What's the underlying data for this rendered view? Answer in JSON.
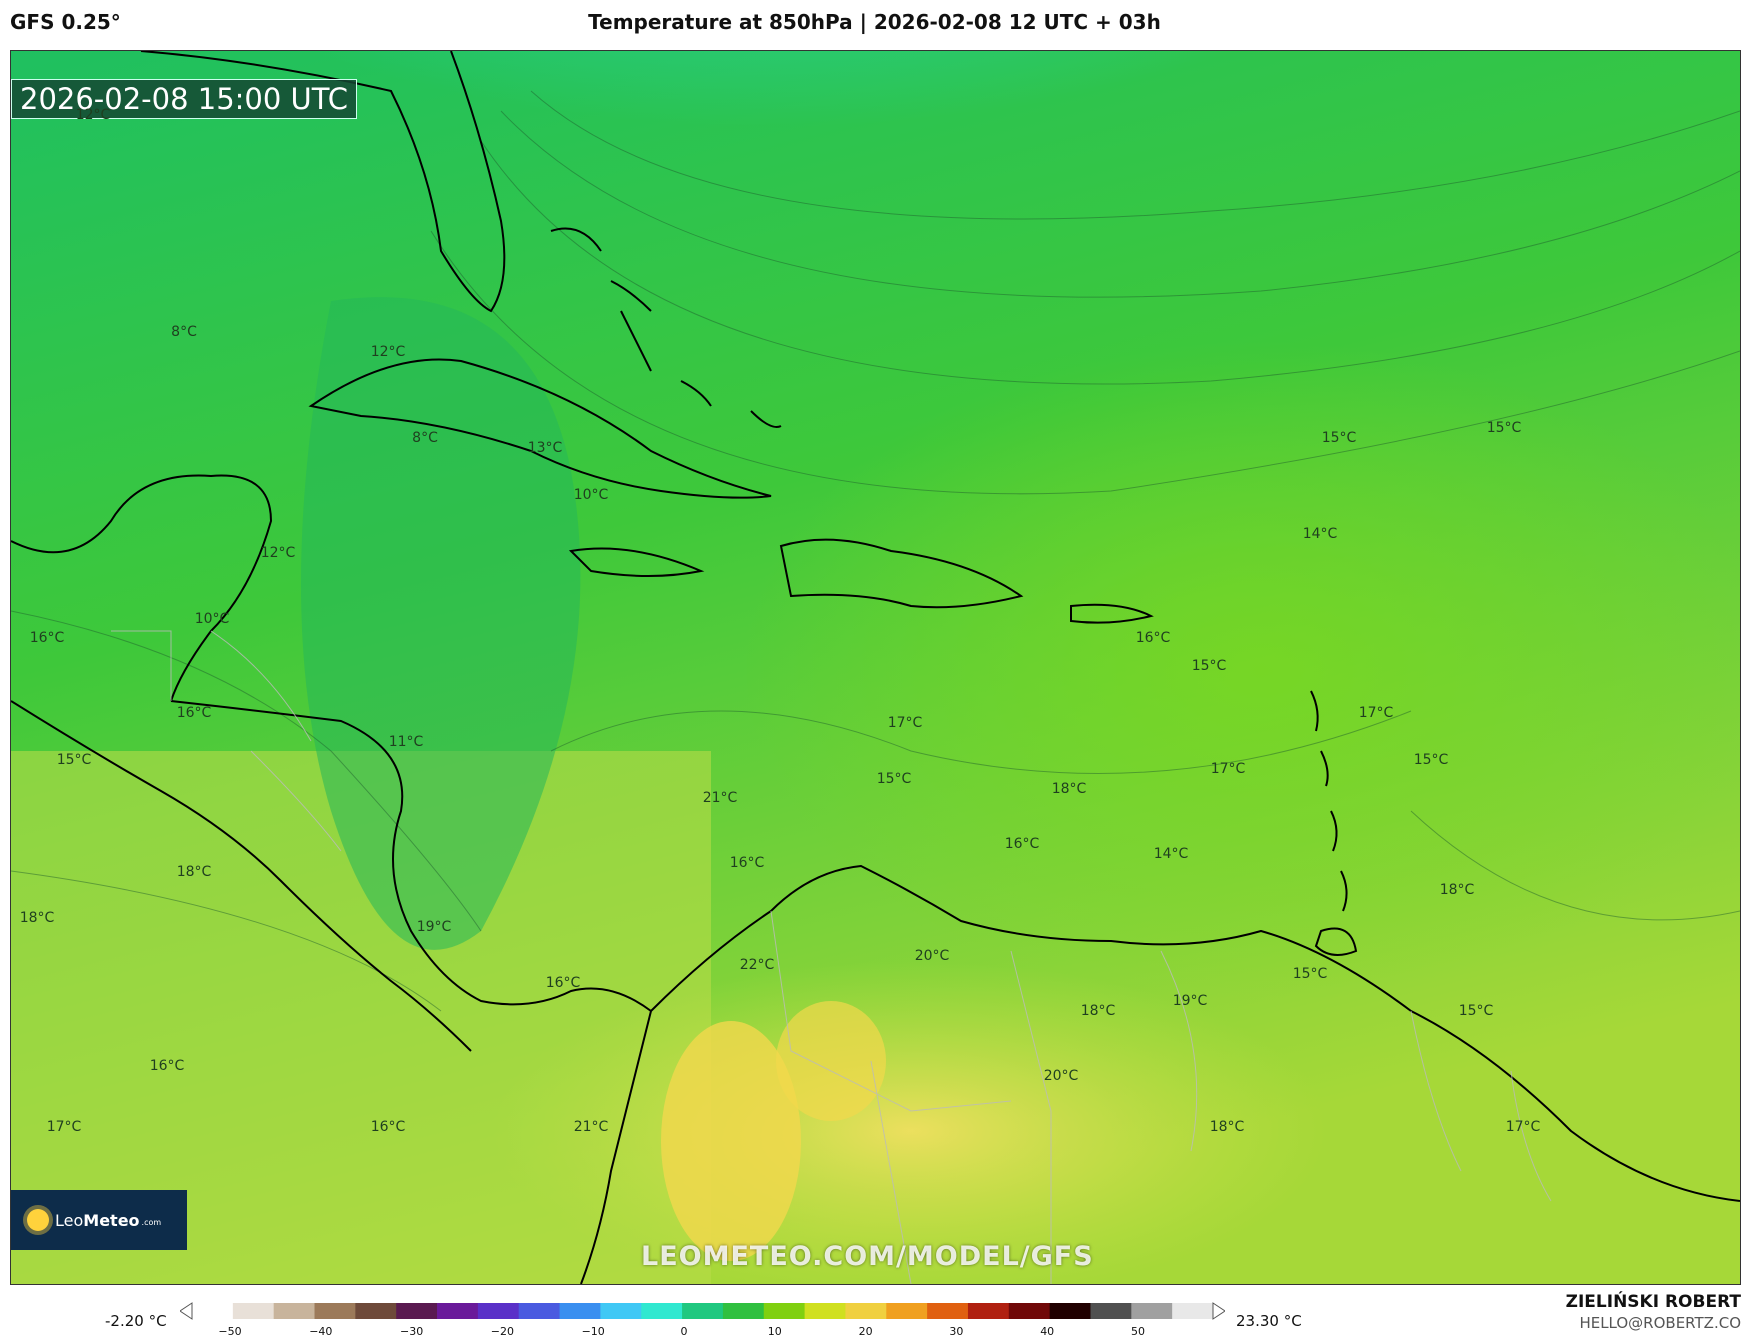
{
  "header": {
    "model": "GFS 0.25°",
    "title": "Temperature at 850hPa | 2026-02-08 12 UTC + 03h"
  },
  "map": {
    "valid_time": "2026-02-08 15:00 UTC",
    "watermark": "LEOMETEO.COM/MODEL/GFS",
    "labels": [
      {
        "text": "12°C"
      },
      {
        "text": "8°C"
      },
      {
        "text": "12°C"
      },
      {
        "text": "8°C"
      },
      {
        "text": "13°C"
      },
      {
        "text": "10°C"
      },
      {
        "text": "12°C"
      },
      {
        "text": "10°C"
      },
      {
        "text": "16°C"
      },
      {
        "text": "16°C"
      },
      {
        "text": "11°C"
      },
      {
        "text": "15°C"
      },
      {
        "text": "18°C"
      },
      {
        "text": "18°C"
      },
      {
        "text": "19°C"
      },
      {
        "text": "16°C"
      },
      {
        "text": "16°C"
      },
      {
        "text": "17°C"
      },
      {
        "text": "16°C"
      },
      {
        "text": "21°C"
      },
      {
        "text": "21°C"
      },
      {
        "text": "16°C"
      },
      {
        "text": "22°C"
      },
      {
        "text": "17°C"
      },
      {
        "text": "15°C"
      },
      {
        "text": "20°C"
      },
      {
        "text": "18°C"
      },
      {
        "text": "16°C"
      },
      {
        "text": "14°C"
      },
      {
        "text": "20°C"
      },
      {
        "text": "18°C"
      },
      {
        "text": "19°C"
      },
      {
        "text": "18°C"
      },
      {
        "text": "15°C"
      },
      {
        "text": "16°C"
      },
      {
        "text": "15°C"
      },
      {
        "text": "17°C"
      },
      {
        "text": "15°C"
      },
      {
        "text": "14°C"
      },
      {
        "text": "17°C"
      },
      {
        "text": "15°C"
      },
      {
        "text": "15°C"
      },
      {
        "text": "18°C"
      },
      {
        "text": "15°C"
      },
      {
        "text": "17°C"
      }
    ]
  },
  "logo": {
    "brand_a": "Leo",
    "brand_b": "Meteo",
    "domain": ".com"
  },
  "colorbar": {
    "min_label": "-2.20 °C",
    "max_label": "23.30 °C",
    "ticks": [
      "−50",
      "−40",
      "−30",
      "−20",
      "−10",
      "0",
      "10",
      "20",
      "30",
      "40",
      "50"
    ],
    "colors": [
      "#ffffff",
      "#e8e0d8",
      "#c8b49c",
      "#9c7a5a",
      "#6e4a3a",
      "#5a1a50",
      "#6a1a9a",
      "#5a30c8",
      "#4a5ae0",
      "#3a8ff0",
      "#40c8f5",
      "#30e8d0",
      "#20c880",
      "#30c040",
      "#80d010",
      "#d0e020",
      "#f0d040",
      "#f0a020",
      "#e06010",
      "#b02010",
      "#700808",
      "#200000",
      "#505050",
      "#a0a0a0",
      "#e8e8e8"
    ]
  },
  "footer": {
    "author": "ZIELIŃSKI ROBERT",
    "email": "HELLO@ROBERTZ.CO"
  }
}
